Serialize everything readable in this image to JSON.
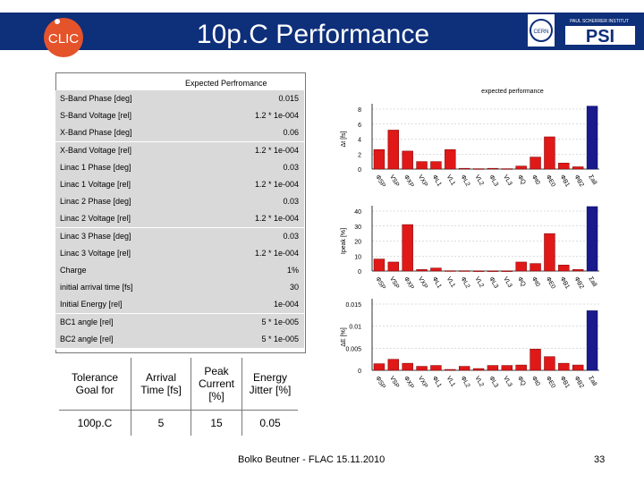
{
  "header": {
    "title": "10p.C Performance",
    "left_logo_text": "CLIC",
    "right_logo_text": "PSI",
    "right_logo_subtext": "PAUL SCHERRER INSTITUT",
    "colors": {
      "bar": "#0e2f7a",
      "text": "#ffffff"
    }
  },
  "params": {
    "title": "Expected Perfromance",
    "rows": [
      {
        "label": "S-Band Phase [deg]",
        "value": "0.015"
      },
      {
        "label": "S-Band Voltage [rel]",
        "value": "1.2 * 1e-004"
      },
      {
        "label": "X-Band Phase [deg]",
        "value": "0.06"
      },
      {
        "label": "X-Band Voltage [rel]",
        "value": "1.2 * 1e-004"
      },
      {
        "label": "Linac 1 Phase [deg]",
        "value": "0.03"
      },
      {
        "label": "Linac 1 Voltage [rel]",
        "value": "1.2 * 1e-004"
      },
      {
        "label": "Linac 2 Phase [deg]",
        "value": "0.03"
      },
      {
        "label": "Linac 2 Voltage [rel]",
        "value": "1.2 * 1e-004"
      },
      {
        "label": "Linac 3 Phase [deg]",
        "value": "0.03"
      },
      {
        "label": "Linac 3 Voltage [rel]",
        "value": "1.2 * 1e-004"
      },
      {
        "label": "Charge",
        "value": "1%"
      },
      {
        "label": "initial arrival time [fs]",
        "value": "30"
      },
      {
        "label": "Initial Energy [rel]",
        "value": "1e-004"
      },
      {
        "label": "BC1 angle [rel]",
        "value": "5 * 1e-005"
      },
      {
        "label": "BC2 angle [rel]",
        "value": "5 * 1e-005"
      }
    ]
  },
  "tolerance": {
    "headers": [
      "Tolerance Goal for",
      "Arrival Time [fs]",
      "Peak Current [%]",
      "Energy Jitter [%]"
    ],
    "row": [
      "100p.C",
      "5",
      "15",
      "0.05"
    ]
  },
  "chart_data": [
    {
      "type": "bar",
      "title": "expected performance",
      "ylabel": "Δt [fs]",
      "ylim": [
        0,
        8
      ],
      "yticks": [
        "0",
        "2",
        "4",
        "6",
        "8"
      ],
      "categories": [
        "ΦSP",
        "VSP",
        "ΦXP",
        "VXP",
        "ΦL1",
        "VL1",
        "ΦL2",
        "VL2",
        "ΦL3",
        "VL3",
        "ΦQ",
        "Φt0",
        "ΦE0",
        "ΦB1",
        "ΦB2",
        "Σall"
      ],
      "values": [
        2.6,
        5.2,
        2.4,
        1.0,
        1.0,
        2.6,
        0.1,
        0.05,
        0.1,
        0.05,
        0.4,
        1.6,
        4.3,
        0.8,
        0.3,
        8.4
      ],
      "highlight_last": true
    },
    {
      "type": "bar",
      "ylabel": "Ipeak [%]",
      "ylim": [
        0,
        40
      ],
      "yticks": [
        "0",
        "10",
        "20",
        "30",
        "40"
      ],
      "categories": [
        "ΦSP",
        "VSP",
        "ΦXP",
        "VXP",
        "ΦL1",
        "VL1",
        "ΦL2",
        "VL2",
        "ΦL3",
        "VL3",
        "ΦQ",
        "Φt0",
        "ΦE0",
        "ΦB1",
        "ΦB2",
        "Σall"
      ],
      "values": [
        8,
        6,
        31,
        1,
        2,
        0.2,
        0.2,
        0.1,
        0.1,
        0.1,
        6,
        5,
        25,
        4,
        1,
        43
      ],
      "highlight_last": true
    },
    {
      "type": "bar",
      "ylabel": "ΔE [%]",
      "ylim": [
        0,
        0.015
      ],
      "yticks": [
        "0",
        "0.005",
        "0.01",
        "0.015"
      ],
      "categories": [
        "ΦSP",
        "VSP",
        "ΦXP",
        "VXP",
        "ΦL1",
        "VL1",
        "ΦL2",
        "VL2",
        "ΦL3",
        "VL3",
        "ΦQ",
        "Φt0",
        "ΦE0",
        "ΦB1",
        "ΦB2",
        "Σall"
      ],
      "values": [
        0.0015,
        0.0025,
        0.0016,
        0.0009,
        0.0011,
        0.0002,
        0.0009,
        0.0004,
        0.0011,
        0.0011,
        0.0012,
        0.0048,
        0.0031,
        0.0016,
        0.0012,
        0.0135
      ],
      "highlight_last": true
    }
  ],
  "footer": {
    "author": "Bolko Beutner - FLAC 15.11.2010",
    "page": "33"
  }
}
